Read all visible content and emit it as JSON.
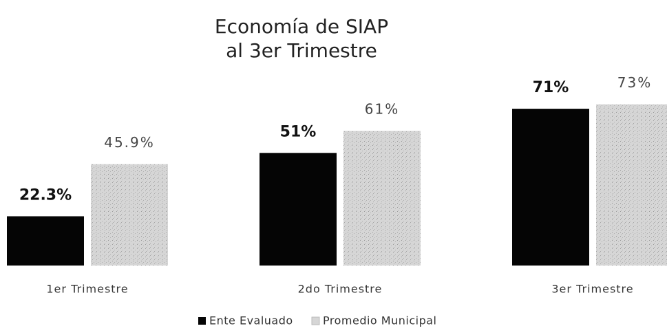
{
  "chart_data": {
    "type": "bar",
    "title": [
      "Economía de SIAP",
      "al 3er Trimestre"
    ],
    "categories": [
      "1er Trimestre",
      "2do Trimestre",
      "3er Trimestre"
    ],
    "series": [
      {
        "name": "Ente Evaluado",
        "color": "#050505",
        "values": [
          22.3,
          51,
          71
        ],
        "value_labels": [
          "22.3%",
          "51%",
          "71%"
        ]
      },
      {
        "name": "Promedio Municipal",
        "color": "#d6d6d6",
        "values": [
          45.9,
          61,
          73
        ],
        "value_labels": [
          "45.9%",
          "61%",
          "73%"
        ]
      }
    ],
    "legend": "bottom"
  }
}
